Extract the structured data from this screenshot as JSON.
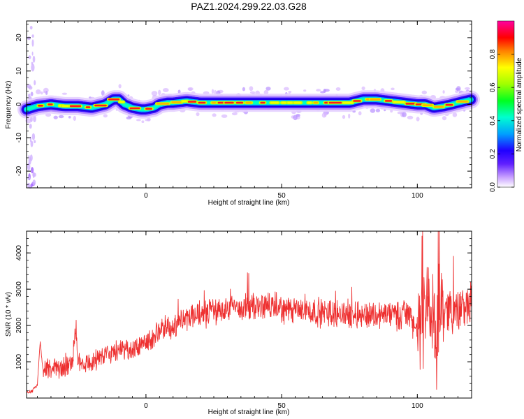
{
  "title": "PAZ1.2024.299.22.03.G28",
  "chart_data": [
    {
      "type": "heatmap",
      "xlabel": "Height of straight line (km)",
      "ylabel": "Frequency (Hz)",
      "xlim": [
        -44,
        120
      ],
      "ylim": [
        -25,
        25
      ],
      "x_ticks": [
        0,
        50,
        100
      ],
      "x_tick_labels": [
        "0",
        "50",
        "100"
      ],
      "y_ticks": [
        -20,
        -10,
        0,
        10,
        20
      ],
      "y_tick_labels": [
        "-20",
        "-10",
        "0",
        "10",
        "20"
      ],
      "colorbar": {
        "label": "Normalized spectral amplitude",
        "range": [
          0,
          1
        ],
        "ticks": [
          0.0,
          0.2,
          0.4,
          0.6,
          0.8
        ],
        "tick_labels": [
          "0.0",
          "0.2",
          "0.4",
          "0.6",
          "0.8"
        ],
        "colormap": [
          "#ffffff",
          "#c8a0ff",
          "#2000ff",
          "#00c8ff",
          "#00ff20",
          "#ffff00",
          "#ff8000",
          "#ff0000",
          "#ff00a0"
        ]
      },
      "ridge": {
        "x": [
          -44,
          -40,
          -35,
          -30,
          -25,
          -20,
          -15,
          -12,
          -10,
          -8,
          -5,
          -2,
          0,
          3,
          5,
          8,
          10,
          15,
          20,
          25,
          30,
          35,
          40,
          45,
          50,
          55,
          60,
          65,
          70,
          75,
          80,
          85,
          90,
          95,
          100,
          103,
          106,
          110,
          115,
          120
        ],
        "y": [
          -1.5,
          -0.5,
          0.0,
          -0.5,
          -0.5,
          -1.0,
          0.0,
          1.5,
          1.5,
          0.0,
          -1.0,
          -1.5,
          -1.5,
          -1.0,
          0.0,
          0.5,
          0.5,
          1.0,
          0.5,
          0.5,
          0.5,
          0.5,
          0.5,
          0.5,
          0.5,
          0.5,
          0.5,
          0.5,
          0.5,
          0.5,
          1.5,
          1.5,
          1.0,
          0.5,
          0.0,
          0.0,
          -1.0,
          -0.5,
          0.5,
          1.5
        ]
      }
    },
    {
      "type": "line",
      "xlabel": "Height of straight line (km)",
      "ylabel": "SNR (10 * v/v)",
      "xlim": [
        -44,
        120
      ],
      "ylim": [
        0,
        4600
      ],
      "x_ticks": [
        0,
        50,
        100
      ],
      "x_tick_labels": [
        "0",
        "50",
        "100"
      ],
      "y_ticks": [
        1000,
        2000,
        3000,
        4000
      ],
      "y_tick_labels": [
        "1000",
        "2000",
        "3000",
        "4000"
      ],
      "color": "#ee3030",
      "envelope": {
        "x": [
          -44,
          -42,
          -40,
          -39,
          -38,
          -35,
          -30,
          -27,
          -26,
          -25,
          -20,
          -15,
          -12,
          -10,
          -5,
          0,
          5,
          10,
          15,
          20,
          25,
          30,
          35,
          40,
          45,
          50,
          55,
          60,
          65,
          70,
          75,
          80,
          85,
          90,
          93,
          96,
          98,
          100,
          102,
          103,
          104,
          105,
          106,
          107,
          108,
          110,
          115,
          120
        ],
        "y": [
          150,
          200,
          350,
          1550,
          800,
          750,
          850,
          1000,
          2100,
          1000,
          1000,
          1200,
          1300,
          1250,
          1300,
          1550,
          1800,
          2000,
          2200,
          2300,
          2400,
          2450,
          2500,
          2500,
          2550,
          2450,
          2400,
          2400,
          2350,
          2350,
          2300,
          2300,
          2300,
          2300,
          2300,
          2350,
          2200,
          1800,
          2000,
          2600,
          3200,
          1500,
          2600,
          1000,
          2500,
          2500,
          2400,
          2600
        ]
      }
    }
  ]
}
